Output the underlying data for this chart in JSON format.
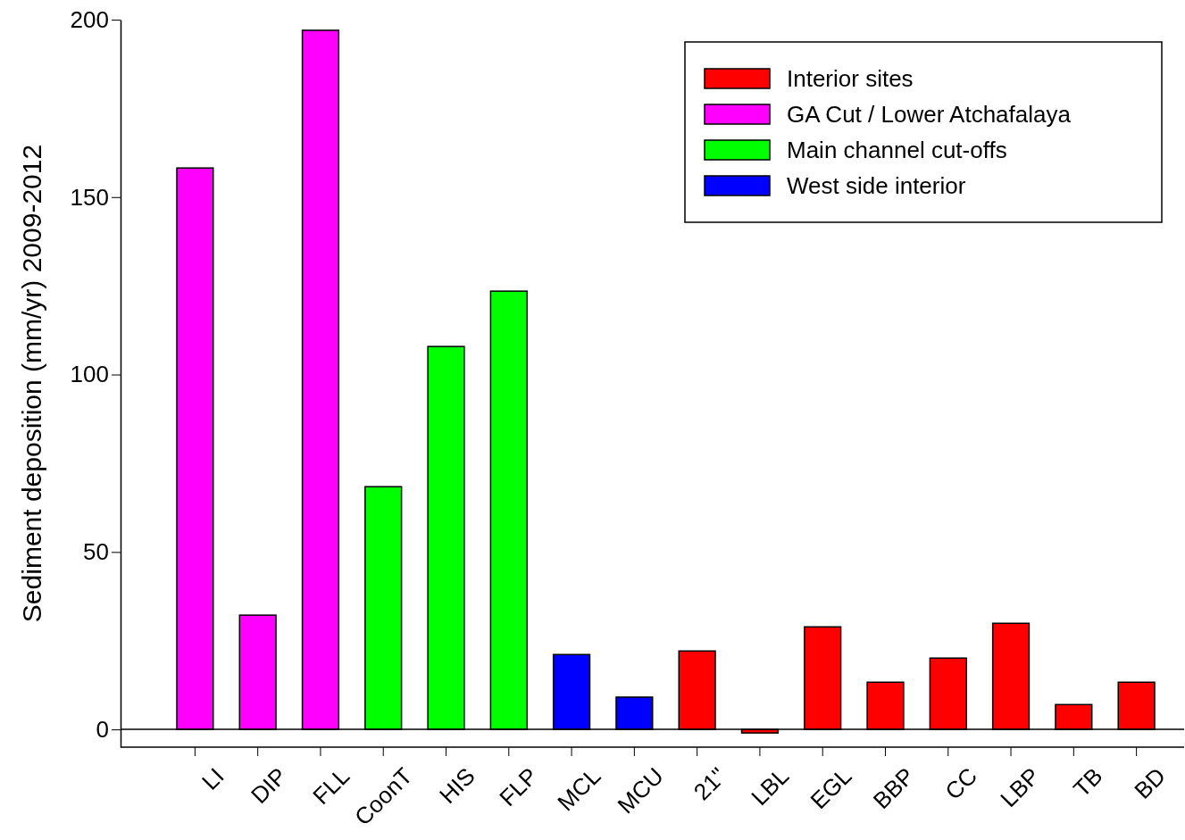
{
  "chart_data": {
    "type": "bar",
    "ylabel": "Sediment deposition (mm/yr) 2009-2012",
    "categories": [
      "LI",
      "DIP",
      "FLL",
      "CoonT",
      "HIS",
      "FLP",
      "MCL",
      "MCU",
      "21\"",
      "LBL",
      "EGL",
      "BBP",
      "CC",
      "LBP",
      "TB",
      "BD"
    ],
    "series": [
      {
        "name": "Interior sites",
        "color": "#ff0000",
        "values": [
          null,
          null,
          null,
          null,
          null,
          null,
          null,
          null,
          22.1,
          -1,
          28.9,
          13.3,
          20.1,
          29.9,
          7.0,
          13.3
        ]
      },
      {
        "name": "GA Cut / Lower Atchafalaya",
        "color": "#ff00ff",
        "values": [
          158.2,
          32.2,
          197,
          null,
          null,
          null,
          null,
          null,
          null,
          null,
          null,
          null,
          null,
          null,
          null,
          null
        ]
      },
      {
        "name": "Main channel cut-offs",
        "color": "#00ff00",
        "values": [
          null,
          null,
          null,
          68.4,
          107.9,
          123.5,
          null,
          null,
          null,
          null,
          null,
          null,
          null,
          null,
          null,
          null
        ]
      },
      {
        "name": "West side interior",
        "color": "#0000ff",
        "values": [
          null,
          null,
          null,
          null,
          null,
          null,
          21.1,
          9.1,
          null,
          null,
          null,
          null,
          null,
          null,
          null,
          null
        ]
      }
    ],
    "ylim": [
      -5,
      200
    ],
    "yticks": [
      0,
      50,
      100,
      150,
      200
    ],
    "ref_lines": [
      {
        "axis": "y",
        "value": 0
      }
    ],
    "grid": false,
    "legend": "top right"
  }
}
